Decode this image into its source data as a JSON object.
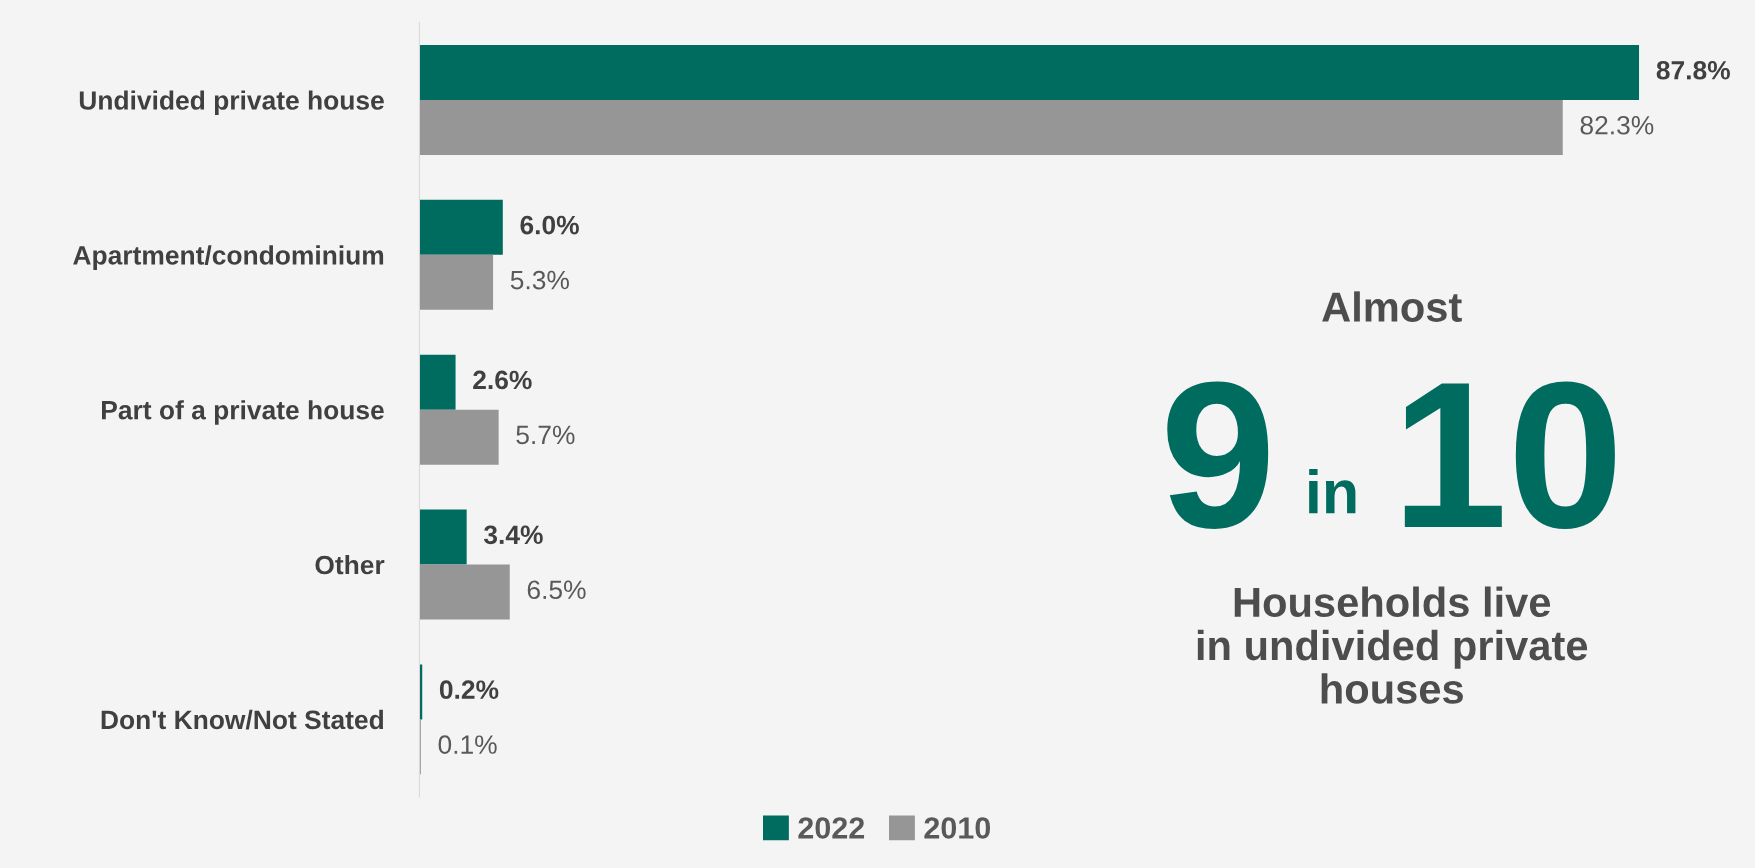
{
  "chart_data": {
    "type": "bar",
    "orientation": "horizontal",
    "categories": [
      "Undivided private house",
      "Apartment/condominium",
      "Part of a private house",
      "Other",
      "Don't Know/Not Stated"
    ],
    "series": [
      {
        "name": "2022",
        "color": "#006b5f",
        "values": [
          87.8,
          6.0,
          2.6,
          3.4,
          0.2
        ],
        "value_labels": [
          "87.8%",
          "6.0%",
          "2.6%",
          "3.4%",
          "0.2%"
        ]
      },
      {
        "name": "2010",
        "color": "#969696",
        "values": [
          82.3,
          5.3,
          5.7,
          6.5,
          0.1
        ],
        "value_labels": [
          "82.3%",
          "5.3%",
          "5.7%",
          "6.5%",
          "0.1%"
        ]
      }
    ],
    "legend": "bottom",
    "grid": false,
    "annotations": [
      "Almost",
      "9",
      "in",
      "10",
      "Households live\nin undivided private\nhouses"
    ]
  }
}
